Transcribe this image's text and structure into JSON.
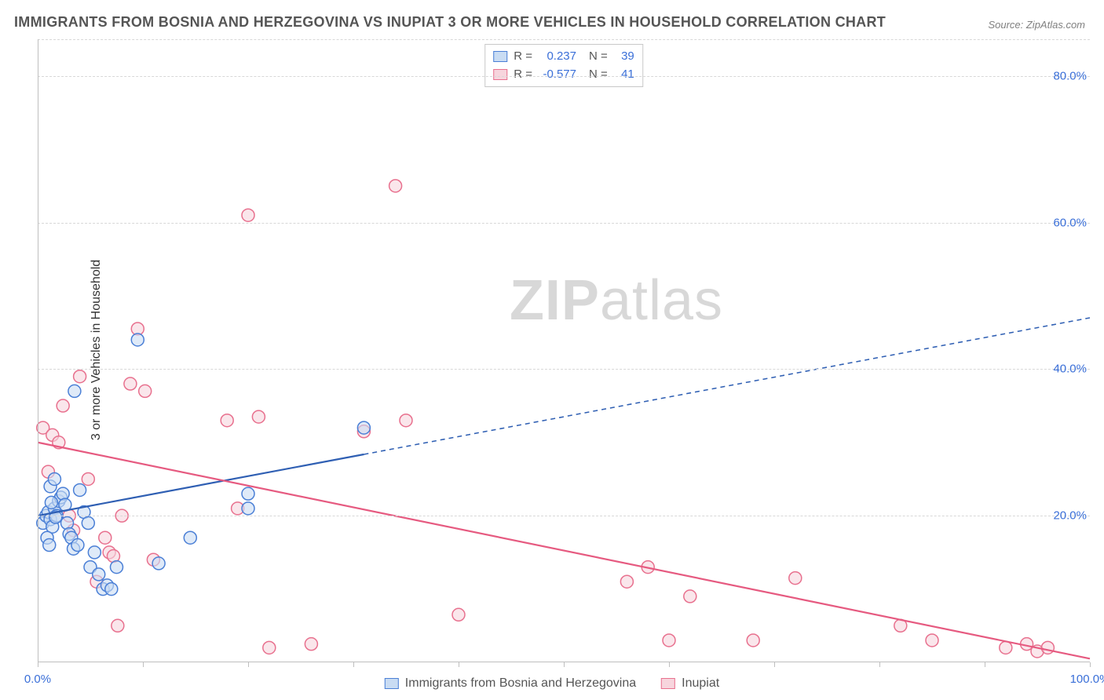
{
  "title": "IMMIGRANTS FROM BOSNIA AND HERZEGOVINA VS INUPIAT 3 OR MORE VEHICLES IN HOUSEHOLD CORRELATION CHART",
  "source": "Source: ZipAtlas.com",
  "watermark": {
    "bold": "ZIP",
    "light": "atlas"
  },
  "y_axis_label": "3 or more Vehicles in Household",
  "chart": {
    "type": "scatter",
    "xlim": [
      0,
      100
    ],
    "ylim": [
      0,
      85
    ],
    "x_ticks": [
      0,
      10,
      20,
      30,
      40,
      50,
      60,
      70,
      80,
      90,
      100
    ],
    "x_tick_labels": {
      "0": "0.0%",
      "100": "100.0%"
    },
    "y_grid": [
      20,
      40,
      60,
      80
    ],
    "y_tick_labels": {
      "20": "20.0%",
      "40": "40.0%",
      "60": "60.0%",
      "80": "80.0%"
    },
    "background_color": "#ffffff",
    "grid_color": "#d8d8d8",
    "axis_color": "#bfbfbf",
    "tick_label_color": "#3a6fd8",
    "marker_radius": 8,
    "marker_stroke_width": 1.5,
    "marker_fill_opacity": 0.25,
    "trend_line_width": 2.2
  },
  "series": [
    {
      "key": "bosnia",
      "label": "Immigrants from Bosnia and Herzegovina",
      "R": "0.237",
      "N": "39",
      "fill": "#c9dcf3",
      "stroke": "#4a7fd6",
      "line_color": "#2f5fb3",
      "trend": {
        "x1": 0,
        "y1": 20,
        "x2": 100,
        "y2": 47,
        "solid_until_x": 31
      },
      "points": [
        [
          0.5,
          19
        ],
        [
          0.8,
          20
        ],
        [
          1.0,
          20.5
        ],
        [
          1.2,
          19.5
        ],
        [
          1.4,
          18.5
        ],
        [
          1.6,
          21
        ],
        [
          1.8,
          20
        ],
        [
          2.0,
          22
        ],
        [
          2.2,
          22.5
        ],
        [
          2.4,
          23
        ],
        [
          2.6,
          21.5
        ],
        [
          2.8,
          19
        ],
        [
          3.0,
          17.5
        ],
        [
          3.2,
          17
        ],
        [
          3.4,
          15.5
        ],
        [
          3.8,
          16
        ],
        [
          4.0,
          23.5
        ],
        [
          4.4,
          20.5
        ],
        [
          4.8,
          19
        ],
        [
          5.0,
          13
        ],
        [
          5.4,
          15
        ],
        [
          5.8,
          12
        ],
        [
          6.2,
          10
        ],
        [
          6.6,
          10.5
        ],
        [
          7.0,
          10
        ],
        [
          7.5,
          13
        ],
        [
          3.5,
          37
        ],
        [
          9.5,
          44
        ],
        [
          11.5,
          13.5
        ],
        [
          14.5,
          17
        ],
        [
          20,
          23
        ],
        [
          20,
          21
        ],
        [
          31,
          32
        ],
        [
          1.2,
          24
        ],
        [
          1.6,
          25
        ],
        [
          0.9,
          17
        ],
        [
          1.1,
          16
        ],
        [
          1.3,
          21.8
        ],
        [
          1.7,
          19.8
        ]
      ]
    },
    {
      "key": "inupiat",
      "label": "Inupiat",
      "R": "-0.577",
      "N": "41",
      "fill": "#f7d5dd",
      "stroke": "#e8708e",
      "line_color": "#e65a80",
      "trend": {
        "x1": 0,
        "y1": 30,
        "x2": 100,
        "y2": 0.5,
        "solid_until_x": 100
      },
      "points": [
        [
          0.5,
          32
        ],
        [
          1.0,
          26
        ],
        [
          1.4,
          31
        ],
        [
          2.0,
          30
        ],
        [
          2.4,
          35
        ],
        [
          3.0,
          20
        ],
        [
          3.4,
          18
        ],
        [
          4.0,
          39
        ],
        [
          4.8,
          25
        ],
        [
          5.6,
          11
        ],
        [
          6.4,
          17
        ],
        [
          6.8,
          15
        ],
        [
          7.2,
          14.5
        ],
        [
          7.6,
          5
        ],
        [
          8.0,
          20
        ],
        [
          8.8,
          38
        ],
        [
          9.5,
          45.5
        ],
        [
          10.2,
          37
        ],
        [
          11,
          14
        ],
        [
          18,
          33
        ],
        [
          19,
          21
        ],
        [
          20,
          61
        ],
        [
          21,
          33.5
        ],
        [
          22,
          2
        ],
        [
          26,
          2.5
        ],
        [
          31,
          31.5
        ],
        [
          34,
          65
        ],
        [
          35,
          33
        ],
        [
          40,
          6.5
        ],
        [
          56,
          11
        ],
        [
          58,
          13
        ],
        [
          60,
          3
        ],
        [
          62,
          9
        ],
        [
          68,
          3
        ],
        [
          72,
          11.5
        ],
        [
          82,
          5
        ],
        [
          85,
          3
        ],
        [
          92,
          2
        ],
        [
          94,
          2.5
        ],
        [
          95,
          1.5
        ],
        [
          96,
          2
        ]
      ]
    }
  ],
  "stats_labels": {
    "R": "R =",
    "N": "N ="
  }
}
